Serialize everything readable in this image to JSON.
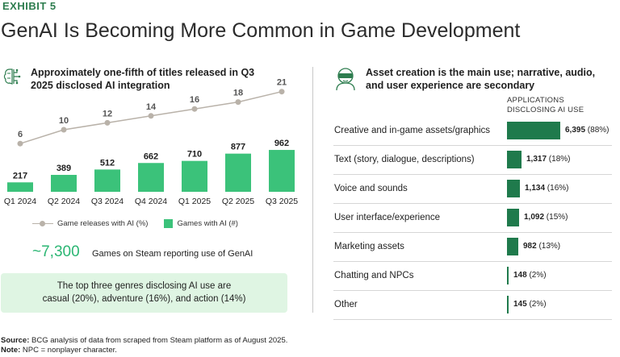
{
  "exhibit": "EXHIBIT 5",
  "title": "GenAI Is Becoming More Common in Game Development",
  "left_panel": {
    "heading": "Approximately one-fifth of titles released in Q3 2025 disclosed AI integration",
    "legend_line": "Game releases with AI (%)",
    "legend_bar": "Games with AI (#)",
    "stat_number": "~7,300",
    "stat_label": "Games on Steam reporting use of GenAI",
    "callout_line1": "The top three genres disclosing AI use are",
    "callout_line2": "casual (20%), adventure (16%), and action (14%)"
  },
  "right_panel": {
    "heading": "Asset creation is the main use; narrative, audio, and user experience are secondary",
    "column_header_line1": "APPLICATIONS",
    "column_header_line2": "DISCLOSING AI USE"
  },
  "colors": {
    "accent_green": "#2e7d4f",
    "bar_green": "#3bc27a",
    "line_gray": "#b9b2a9",
    "hbar_green": "#1f7a4c",
    "callout_bg": "#dff5e3"
  },
  "icons": {
    "left": "brain-circuit-icon",
    "right": "vr-headset-person-icon"
  },
  "chart_data": [
    {
      "type": "bar",
      "categories": [
        "Q1 2024",
        "Q2 2024",
        "Q3 2024",
        "Q4 2024",
        "Q1 2025",
        "Q2 2025",
        "Q3 2025"
      ],
      "series": [
        {
          "name": "Games with AI (#)",
          "type": "bar",
          "values": [
            217,
            389,
            512,
            662,
            710,
            877,
            962
          ],
          "labels": [
            "217",
            "389",
            "512",
            "662",
            "710",
            "877",
            "962"
          ]
        },
        {
          "name": "Game releases with AI (%)",
          "type": "line",
          "values": [
            6,
            10,
            12,
            14,
            16,
            18,
            21
          ],
          "labels": [
            "6",
            "10",
            "12",
            "14",
            "16",
            "18",
            "21"
          ]
        }
      ],
      "legend": "bottom"
    },
    {
      "type": "bar",
      "orientation": "horizontal",
      "categories": [
        "Creative and in-game assets/graphics",
        "Text (story, dialogue, descriptions)",
        "Voice and sounds",
        "User interface/experience",
        "Marketing assets",
        "Chatting and NPCs",
        "Other"
      ],
      "values": [
        6395,
        1317,
        1134,
        1092,
        982,
        148,
        145
      ],
      "percent_labels": [
        "(88%)",
        "(18%)",
        "(16%)",
        "(15%)",
        "(13%)",
        "(2%)",
        "(2%)"
      ],
      "value_labels": [
        "6,395",
        "1,317",
        "1,134",
        "1,092",
        "982",
        "148",
        "145"
      ]
    }
  ],
  "footer": {
    "source_label": "Source:",
    "source_text": "BCG analysis of data from scraped from Steam platform as of August 2025.",
    "note_label": "Note:",
    "note_text": "NPC = nonplayer character."
  }
}
